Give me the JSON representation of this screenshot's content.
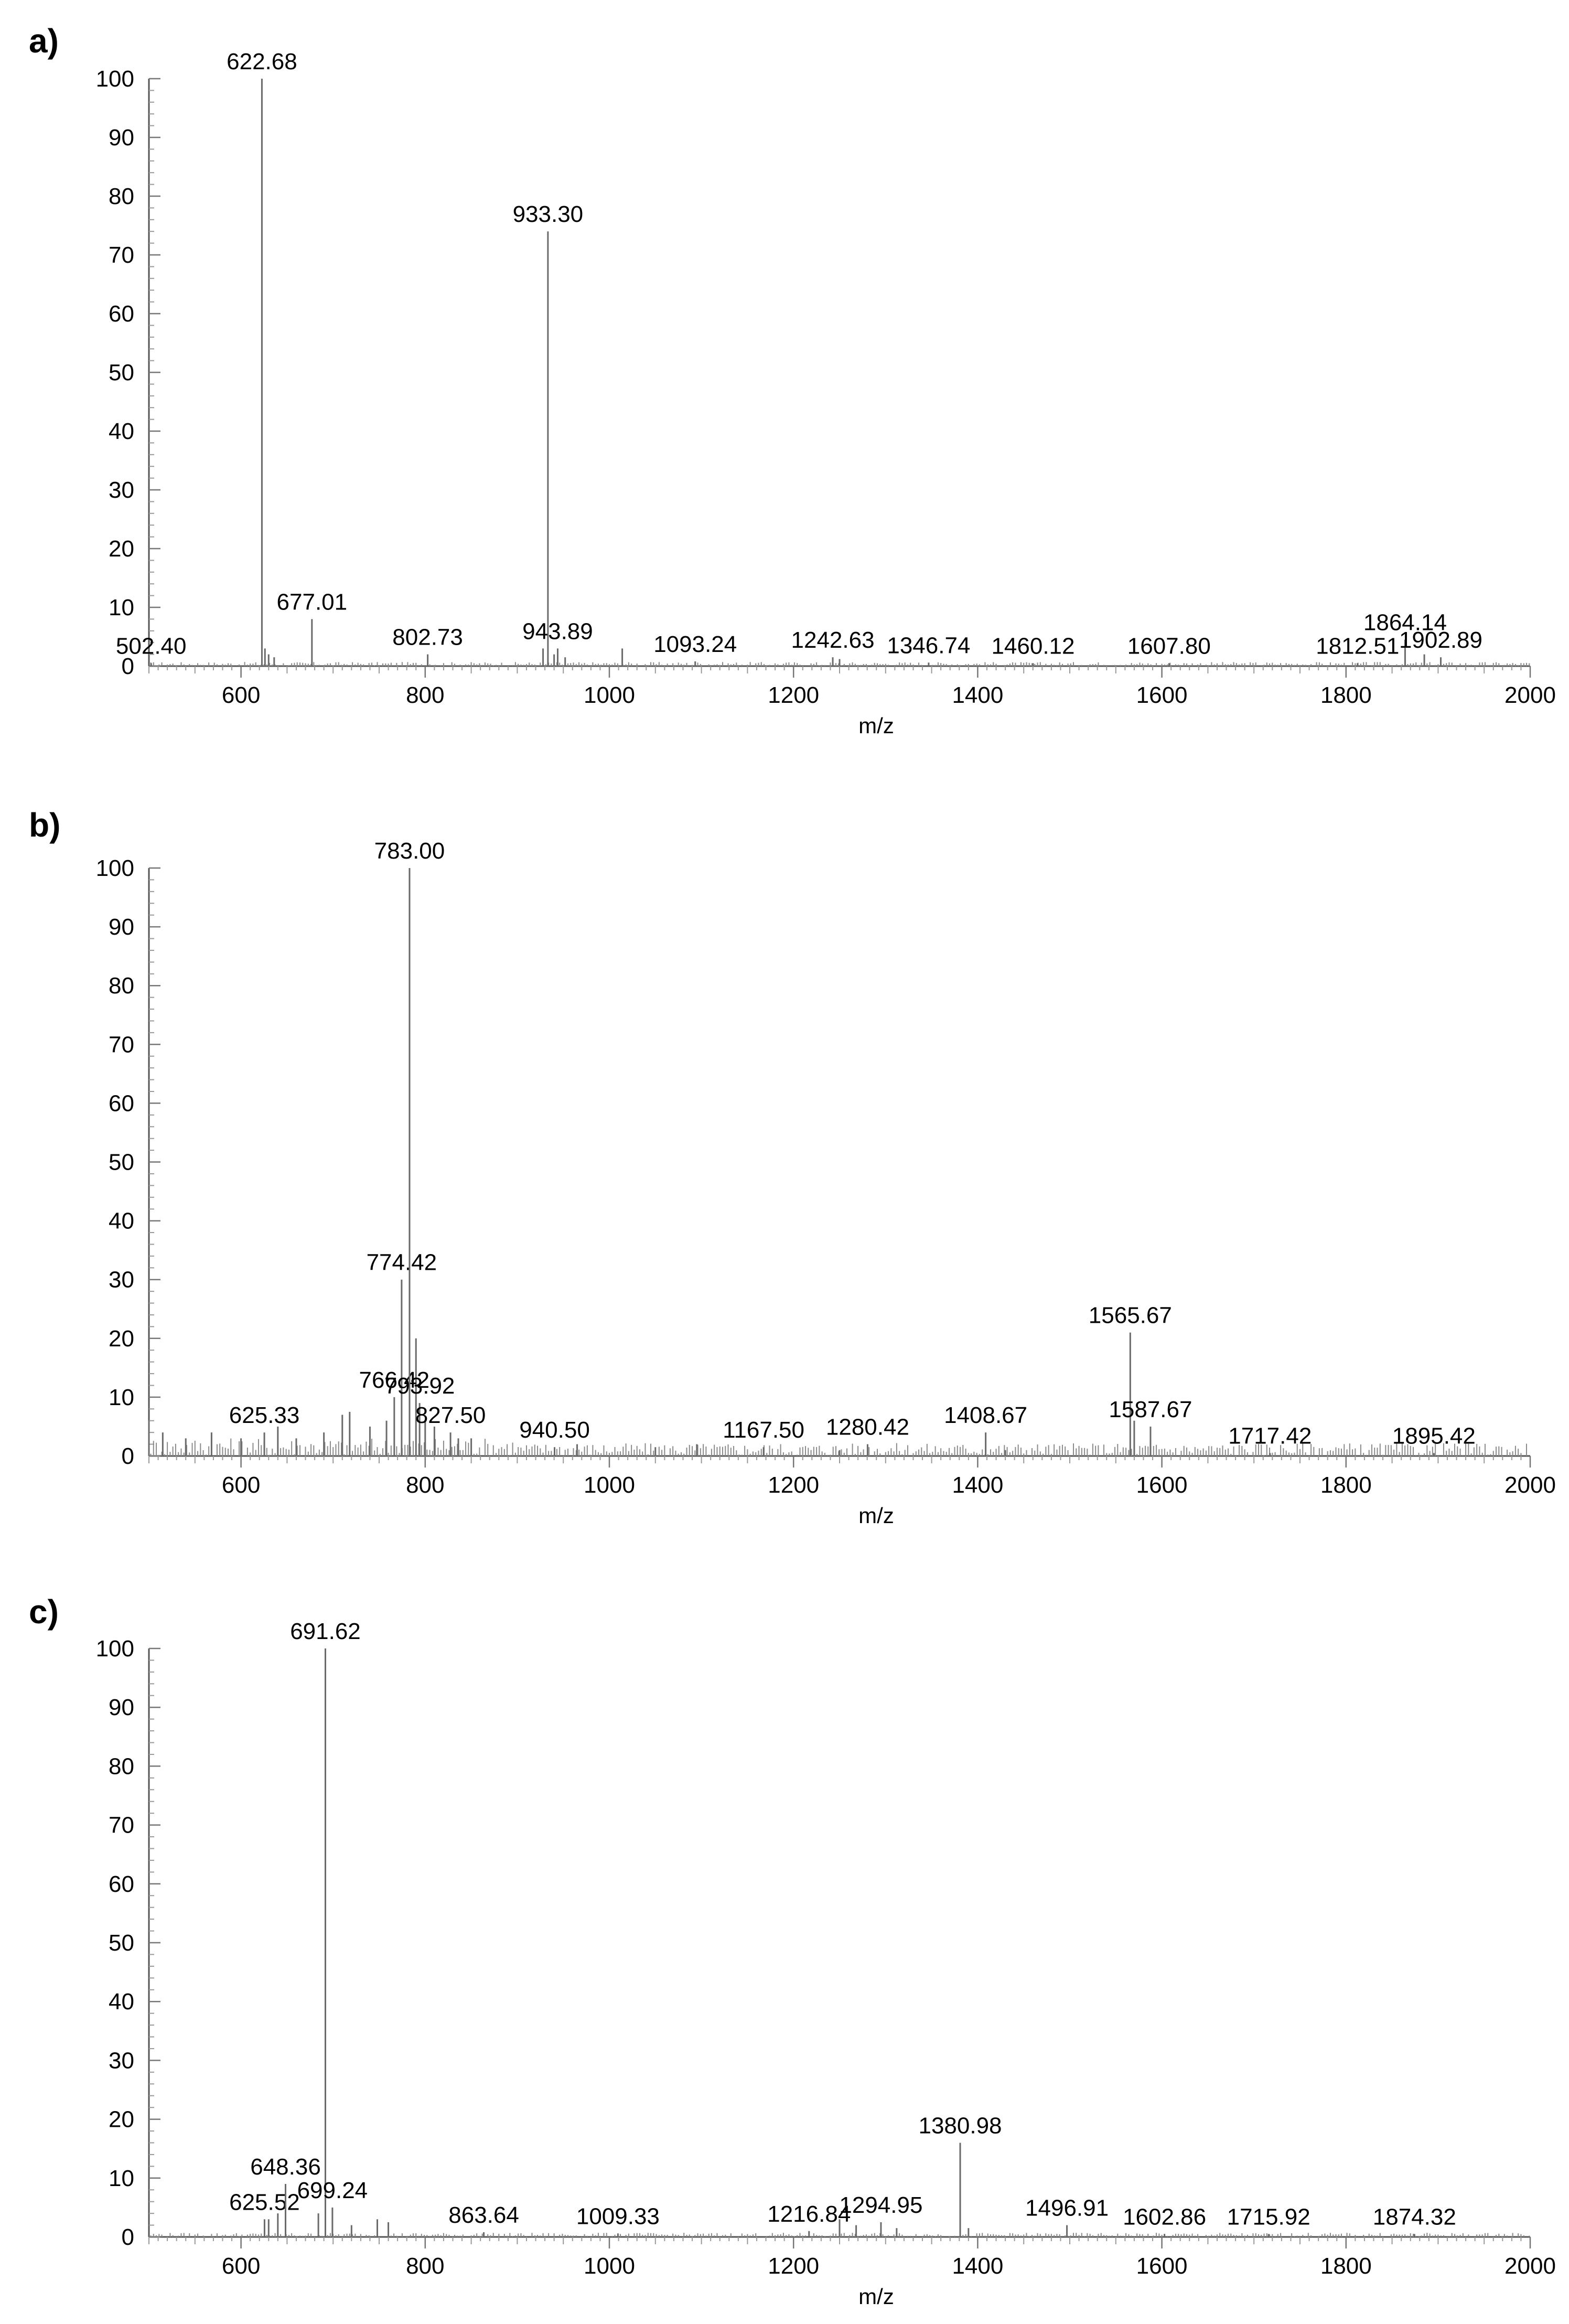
{
  "chart_data": [
    {
      "type": "line",
      "panel_label": "a)",
      "xlabel": "m/z",
      "ylabel": "",
      "xlim": [
        500,
        2000
      ],
      "ylim": [
        0,
        100
      ],
      "x_ticks": [
        600,
        800,
        1000,
        1200,
        1400,
        1600,
        1800,
        2000
      ],
      "y_ticks": [
        0,
        10,
        20,
        30,
        40,
        50,
        60,
        70,
        80,
        90,
        100
      ],
      "peaks": [
        {
          "x": 502.4,
          "y": 0.5,
          "label": "502.40"
        },
        {
          "x": 622.68,
          "y": 100,
          "label": "622.68"
        },
        {
          "x": 677.01,
          "y": 8,
          "label": "677.01"
        },
        {
          "x": 802.73,
          "y": 2,
          "label": "802.73"
        },
        {
          "x": 933.3,
          "y": 74,
          "label": "933.30"
        },
        {
          "x": 943.89,
          "y": 3,
          "label": "943.89"
        },
        {
          "x": 1093.24,
          "y": 0.8,
          "label": "1093.24"
        },
        {
          "x": 1242.63,
          "y": 1.5,
          "label": "1242.63"
        },
        {
          "x": 1346.74,
          "y": 0.6,
          "label": "1346.74"
        },
        {
          "x": 1460.12,
          "y": 0.5,
          "label": "1460.12"
        },
        {
          "x": 1607.8,
          "y": 0.5,
          "label": "1607.80"
        },
        {
          "x": 1812.51,
          "y": 0.5,
          "label": "1812.51"
        },
        {
          "x": 1864.14,
          "y": 4.5,
          "label": "1864.14"
        },
        {
          "x": 1902.89,
          "y": 1.5,
          "label": "1902.89"
        }
      ],
      "minor_peaks": [
        {
          "x": 626,
          "y": 3
        },
        {
          "x": 630,
          "y": 2
        },
        {
          "x": 636,
          "y": 1.5
        },
        {
          "x": 928,
          "y": 3
        },
        {
          "x": 940,
          "y": 2
        },
        {
          "x": 952,
          "y": 1.5
        },
        {
          "x": 1014,
          "y": 3
        },
        {
          "x": 1250,
          "y": 1.2
        },
        {
          "x": 1885,
          "y": 2
        }
      ]
    },
    {
      "type": "line",
      "panel_label": "b)",
      "xlabel": "m/z",
      "ylabel": "",
      "xlim": [
        500,
        2000
      ],
      "ylim": [
        0,
        100
      ],
      "x_ticks": [
        600,
        800,
        1000,
        1200,
        1400,
        1600,
        1800,
        2000
      ],
      "y_ticks": [
        0,
        10,
        20,
        30,
        40,
        50,
        60,
        70,
        80,
        90,
        100
      ],
      "peaks": [
        {
          "x": 625.33,
          "y": 4,
          "label": "625.33"
        },
        {
          "x": 766.42,
          "y": 10,
          "label": "766.42"
        },
        {
          "x": 774.42,
          "y": 30,
          "label": "774.42"
        },
        {
          "x": 783.0,
          "y": 100,
          "label": "783.00"
        },
        {
          "x": 793.92,
          "y": 9,
          "label": "793.92"
        },
        {
          "x": 827.5,
          "y": 4,
          "label": "827.50"
        },
        {
          "x": 940.5,
          "y": 1.5,
          "label": "940.50"
        },
        {
          "x": 1167.5,
          "y": 1.5,
          "label": "1167.50"
        },
        {
          "x": 1280.42,
          "y": 2,
          "label": "1280.42"
        },
        {
          "x": 1408.67,
          "y": 4,
          "label": "1408.67"
        },
        {
          "x": 1565.67,
          "y": 21,
          "label": "1565.67"
        },
        {
          "x": 1587.67,
          "y": 5,
          "label": "1587.67"
        },
        {
          "x": 1717.42,
          "y": 0.5,
          "label": "1717.42"
        },
        {
          "x": 1895.42,
          "y": 0.5,
          "label": "1895.42"
        }
      ],
      "minor_peaks": [
        {
          "x": 500,
          "y": 6
        },
        {
          "x": 515,
          "y": 4
        },
        {
          "x": 540,
          "y": 3
        },
        {
          "x": 568,
          "y": 4
        },
        {
          "x": 600,
          "y": 3
        },
        {
          "x": 640,
          "y": 5
        },
        {
          "x": 660,
          "y": 3
        },
        {
          "x": 690,
          "y": 4
        },
        {
          "x": 710,
          "y": 7
        },
        {
          "x": 718,
          "y": 7.5
        },
        {
          "x": 740,
          "y": 5
        },
        {
          "x": 758,
          "y": 6
        },
        {
          "x": 790,
          "y": 20
        },
        {
          "x": 800,
          "y": 6
        },
        {
          "x": 810,
          "y": 5
        },
        {
          "x": 836,
          "y": 3
        },
        {
          "x": 850,
          "y": 3
        },
        {
          "x": 965,
          "y": 2
        },
        {
          "x": 1050,
          "y": 1.5
        },
        {
          "x": 1095,
          "y": 2
        },
        {
          "x": 1250,
          "y": 1
        },
        {
          "x": 1430,
          "y": 1
        },
        {
          "x": 1570,
          "y": 6
        }
      ]
    },
    {
      "type": "line",
      "panel_label": "c)",
      "xlabel": "m/z",
      "ylabel": "",
      "xlim": [
        500,
        2000
      ],
      "ylim": [
        0,
        100
      ],
      "x_ticks": [
        600,
        800,
        1000,
        1200,
        1400,
        1600,
        1800,
        2000
      ],
      "y_ticks": [
        0,
        10,
        20,
        30,
        40,
        50,
        60,
        70,
        80,
        90,
        100
      ],
      "peaks": [
        {
          "x": 625.52,
          "y": 3,
          "label": "625.52"
        },
        {
          "x": 648.36,
          "y": 9,
          "label": "648.36"
        },
        {
          "x": 691.62,
          "y": 100,
          "label": "691.62"
        },
        {
          "x": 699.24,
          "y": 5,
          "label": "699.24"
        },
        {
          "x": 863.64,
          "y": 0.8,
          "label": "863.64"
        },
        {
          "x": 1009.33,
          "y": 0.6,
          "label": "1009.33"
        },
        {
          "x": 1216.84,
          "y": 1,
          "label": "1216.84"
        },
        {
          "x": 1294.95,
          "y": 2.5,
          "label": "1294.95"
        },
        {
          "x": 1380.98,
          "y": 16,
          "label": "1380.98"
        },
        {
          "x": 1496.91,
          "y": 2,
          "label": "1496.91"
        },
        {
          "x": 1602.86,
          "y": 0.5,
          "label": "1602.86"
        },
        {
          "x": 1715.92,
          "y": 0.5,
          "label": "1715.92"
        },
        {
          "x": 1874.32,
          "y": 0.5,
          "label": "1874.32"
        }
      ],
      "minor_peaks": [
        {
          "x": 630,
          "y": 3
        },
        {
          "x": 640,
          "y": 4
        },
        {
          "x": 684,
          "y": 4
        },
        {
          "x": 720,
          "y": 2
        },
        {
          "x": 748,
          "y": 3
        },
        {
          "x": 760,
          "y": 2.5
        },
        {
          "x": 1250,
          "y": 3
        },
        {
          "x": 1268,
          "y": 2
        },
        {
          "x": 1312,
          "y": 1.5
        },
        {
          "x": 1390,
          "y": 1.5
        }
      ]
    }
  ]
}
